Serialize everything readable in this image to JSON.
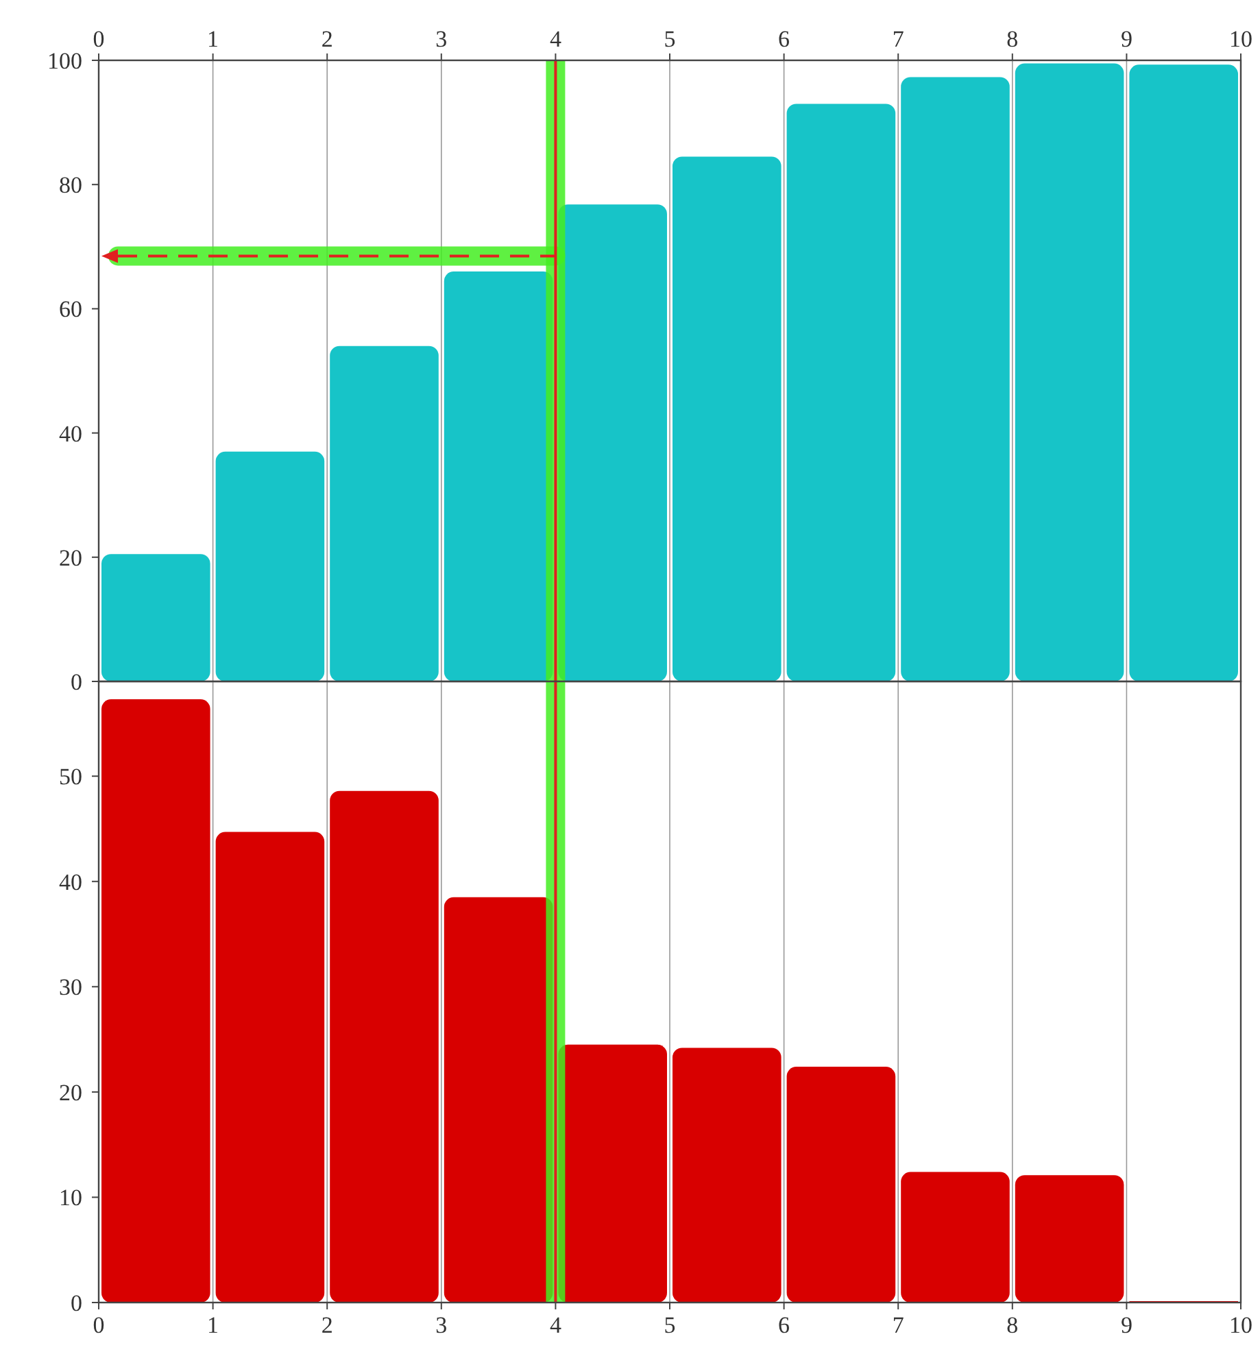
{
  "chart_data": [
    {
      "type": "histogram",
      "bins": [
        0,
        1,
        2,
        3,
        4,
        5,
        6,
        7,
        8,
        9,
        10
      ],
      "values": [
        20.5,
        37,
        54,
        66,
        76.8,
        84.5,
        93,
        97.3,
        99.5,
        99.3
      ],
      "color": "#17c4c8",
      "xlim": [
        0,
        10
      ],
      "xticks": [
        0,
        1,
        2,
        3,
        4,
        5,
        6,
        7,
        8,
        9,
        10
      ],
      "ylim": [
        0,
        100
      ],
      "yticks": [
        0,
        20,
        40,
        60,
        80,
        100
      ],
      "grid": "x",
      "ref_lines": [
        {
          "axis": "x",
          "value": 4,
          "color": "#44ee22"
        },
        {
          "axis": "y",
          "value": 68.5,
          "color": "#44ee22"
        },
        {
          "axis": "x",
          "value": 4,
          "color": "#e02020"
        },
        {
          "axis": "y",
          "value": 68.5,
          "color": "#e02020",
          "line_style": "dashed"
        }
      ]
    },
    {
      "type": "histogram",
      "bins": [
        0,
        1,
        2,
        3,
        4,
        5,
        6,
        7,
        8,
        9,
        10
      ],
      "values": [
        57.3,
        44.7,
        48.6,
        38.5,
        24.5,
        24.2,
        22.4,
        12.4,
        12.1,
        0
      ],
      "color": "#d80000",
      "xlim": [
        0,
        10
      ],
      "xticks": [
        0,
        1,
        2,
        3,
        4,
        5,
        6,
        7,
        8,
        9,
        10
      ],
      "ylim": [
        0,
        59
      ],
      "yticks": [
        0,
        10,
        20,
        30,
        40,
        50
      ],
      "grid": "x",
      "ref_lines": [
        {
          "axis": "x",
          "value": 4,
          "color": "#44ee22"
        },
        {
          "axis": "x",
          "value": 4,
          "color": "#e02020"
        }
      ]
    }
  ]
}
